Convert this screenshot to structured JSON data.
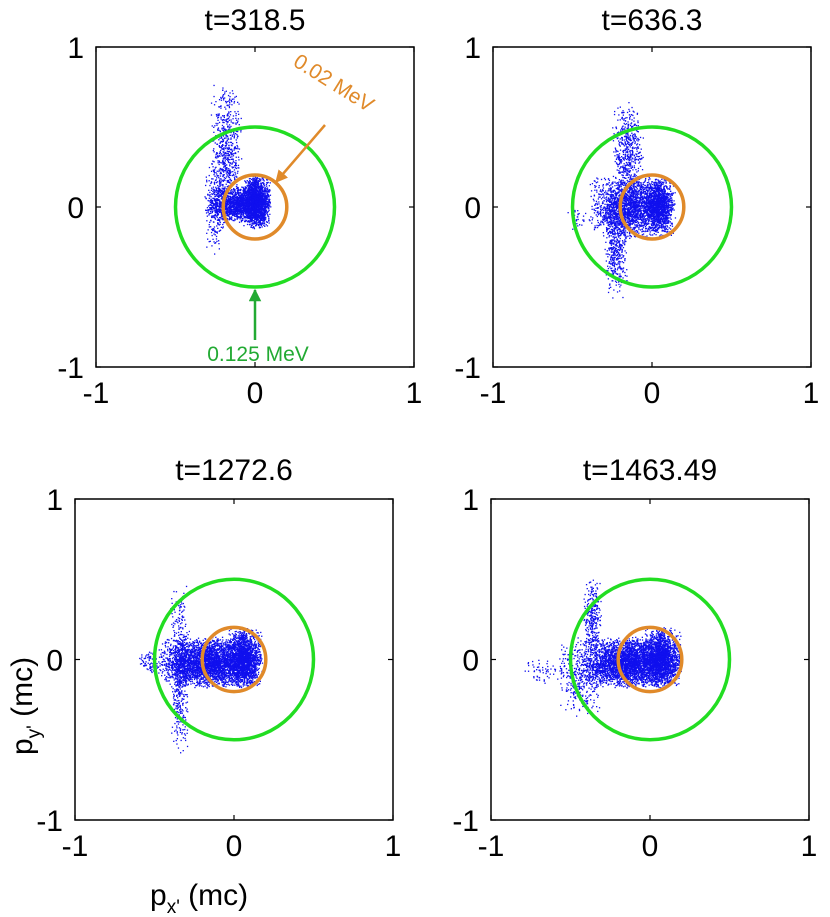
{
  "colors": {
    "points": "#1010ee",
    "ring_outer": "#22dd22",
    "ring_inner": "#e08a2a",
    "annotation_outer": "#22aa33",
    "annotation_inner": "#e08a2a"
  },
  "chart_data": [
    {
      "type": "scatter",
      "title": "t=318.5",
      "xlim": [
        -1,
        1
      ],
      "ylim": [
        -1,
        1
      ],
      "xticks": [
        "-1",
        "0",
        "1"
      ],
      "yticks": [
        "-1",
        "0",
        "1"
      ],
      "circles": [
        {
          "name": "0.125 MeV",
          "cx": 0,
          "cy": 0,
          "r": 0.5
        },
        {
          "name": "0.02 MeV",
          "cx": 0,
          "cy": 0,
          "r": 0.2
        }
      ],
      "annotations": [
        {
          "text": "0.02 MeV",
          "color": "inner"
        },
        {
          "text": "0.125 MeV",
          "color": "outer"
        }
      ],
      "clusters": [
        {
          "x": [
            -0.28,
            -0.08
          ],
          "y": [
            -0.12,
            0.78
          ],
          "n": 650
        },
        {
          "x": [
            -0.3,
            0.1
          ],
          "y": [
            -0.1,
            0.14
          ],
          "n": 1500
        },
        {
          "x": [
            -0.08,
            0.1
          ],
          "y": [
            -0.14,
            0.2
          ],
          "n": 1800
        },
        {
          "x": [
            -0.32,
            -0.18
          ],
          "y": [
            -0.3,
            0.3
          ],
          "n": 250
        }
      ]
    },
    {
      "type": "scatter",
      "title": "t=636.3",
      "xlim": [
        -1,
        1
      ],
      "ylim": [
        -1,
        1
      ],
      "xticks": [
        "-1",
        "0",
        "1"
      ],
      "yticks": [
        "-1",
        "0",
        "1"
      ],
      "circles": [
        {
          "name": "0.125 MeV",
          "cx": 0,
          "cy": 0,
          "r": 0.5
        },
        {
          "name": "0.02 MeV",
          "cx": 0,
          "cy": 0,
          "r": 0.2
        }
      ],
      "annotations": [],
      "clusters": [
        {
          "x": [
            -0.3,
            -0.15
          ],
          "y": [
            -0.58,
            0.1
          ],
          "n": 450
        },
        {
          "x": [
            -0.25,
            -0.05
          ],
          "y": [
            0.0,
            0.66
          ],
          "n": 550
        },
        {
          "x": [
            -0.4,
            0.15
          ],
          "y": [
            -0.2,
            0.2
          ],
          "n": 2200
        },
        {
          "x": [
            -0.05,
            0.14
          ],
          "y": [
            -0.16,
            0.18
          ],
          "n": 1200
        },
        {
          "x": [
            -0.55,
            -0.4
          ],
          "y": [
            -0.15,
            0.0
          ],
          "n": 30
        }
      ]
    },
    {
      "type": "scatter",
      "title": "t=1272.6",
      "xlim": [
        -1,
        1
      ],
      "ylim": [
        -1,
        1
      ],
      "xticks": [
        "-1",
        "0",
        "1"
      ],
      "yticks": [
        "-1",
        "0",
        "1"
      ],
      "xlabel": "p",
      "xlabel_sub": "x'",
      "xlabel_unit": " (mc)",
      "ylabel": "p",
      "ylabel_sub": "y'",
      "ylabel_unit": " (mc)",
      "circles": [
        {
          "name": "0.125 MeV",
          "cx": 0,
          "cy": 0,
          "r": 0.5
        },
        {
          "name": "0.02 MeV",
          "cx": 0,
          "cy": 0,
          "r": 0.2
        }
      ],
      "annotations": [],
      "clusters": [
        {
          "x": [
            -0.48,
            0.18
          ],
          "y": [
            -0.18,
            0.14
          ],
          "n": 3500
        },
        {
          "x": [
            -0.4,
            -0.28
          ],
          "y": [
            -0.62,
            0.48
          ],
          "n": 500
        },
        {
          "x": [
            -0.6,
            -0.45
          ],
          "y": [
            -0.1,
            0.05
          ],
          "n": 80
        },
        {
          "x": [
            -0.05,
            0.18
          ],
          "y": [
            -0.18,
            0.2
          ],
          "n": 1500
        }
      ]
    },
    {
      "type": "scatter",
      "title": "t=1463.49",
      "xlim": [
        -1,
        1
      ],
      "ylim": [
        -1,
        1
      ],
      "xticks": [
        "-1",
        "0",
        "1"
      ],
      "yticks": [
        "-1",
        "0",
        "1"
      ],
      "circles": [
        {
          "name": "0.125 MeV",
          "cx": 0,
          "cy": 0,
          "r": 0.5
        },
        {
          "name": "0.02 MeV",
          "cx": 0,
          "cy": 0,
          "r": 0.2
        }
      ],
      "annotations": [],
      "clusters": [
        {
          "x": [
            -0.45,
            0.2
          ],
          "y": [
            -0.18,
            0.14
          ],
          "n": 3500
        },
        {
          "x": [
            -0.58,
            -0.3
          ],
          "y": [
            -0.36,
            0.15
          ],
          "n": 350
        },
        {
          "x": [
            -0.42,
            -0.3
          ],
          "y": [
            0.0,
            0.52
          ],
          "n": 280
        },
        {
          "x": [
            -0.8,
            -0.5
          ],
          "y": [
            -0.16,
            0.02
          ],
          "n": 60
        },
        {
          "x": [
            -0.05,
            0.2
          ],
          "y": [
            -0.18,
            0.2
          ],
          "n": 1500
        }
      ]
    }
  ]
}
